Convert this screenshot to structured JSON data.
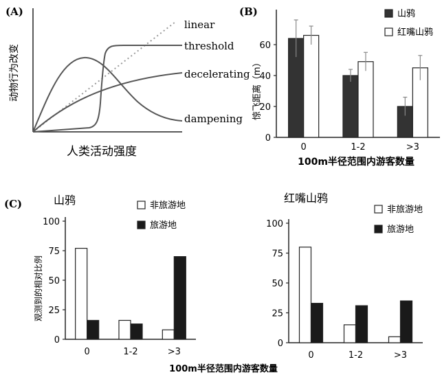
{
  "panel_a": {
    "label": "(A)",
    "ylabel": "动物行为改变",
    "xlabel": "人类活动强度",
    "curves": [
      "linear",
      "threshold",
      "decelerating",
      "dampening"
    ]
  },
  "chart_data": [
    {
      "panel": "(B)",
      "type": "bar",
      "ylabel": "惊飞距离（m）",
      "xlabel": "100m半径范围内游客数量",
      "categories": [
        "0",
        "1-2",
        ">3"
      ],
      "ylim": [
        0,
        80
      ],
      "yticks": [
        "0",
        "20",
        "40",
        "60"
      ],
      "legend_position": "top-right",
      "series": [
        {
          "name": "山鸦",
          "color": "#333333",
          "values": [
            64,
            40,
            20
          ],
          "error": [
            12,
            4,
            6
          ]
        },
        {
          "name": "红嘴山鸦",
          "color": "#ffffff",
          "values": [
            66,
            49,
            45
          ],
          "error": [
            6,
            6,
            8
          ]
        }
      ]
    },
    {
      "panel": "(C)",
      "title": "山鸦",
      "type": "bar",
      "ylabel": "观测到的相对比例",
      "xlabel": "100m半径范围内游客数量",
      "categories": [
        "0",
        "1-2",
        ">3"
      ],
      "ylim": [
        0,
        100
      ],
      "yticks": [
        "0",
        "25",
        "50",
        "75",
        "100"
      ],
      "legend_position": "top-right",
      "series": [
        {
          "name": "非旅游地",
          "color": "#ffffff",
          "values": [
            77,
            16,
            8
          ]
        },
        {
          "name": "旅游地",
          "color": "#1a1a1a",
          "values": [
            16,
            13,
            70
          ]
        }
      ]
    },
    {
      "panel": "(C)",
      "title": "红嘴山鸦",
      "type": "bar",
      "ylabel": "",
      "xlabel": "",
      "categories": [
        "0",
        "1-2",
        ">3"
      ],
      "ylim": [
        0,
        100
      ],
      "yticks": [
        "0",
        "25",
        "50",
        "75",
        "100"
      ],
      "legend_position": "top-right",
      "series": [
        {
          "name": "非旅游地",
          "color": "#ffffff",
          "values": [
            80,
            15,
            5
          ]
        },
        {
          "name": "旅游地",
          "color": "#1a1a1a",
          "values": [
            33,
            31,
            35
          ]
        }
      ]
    }
  ],
  "panel_c": {
    "label": "(C)"
  }
}
